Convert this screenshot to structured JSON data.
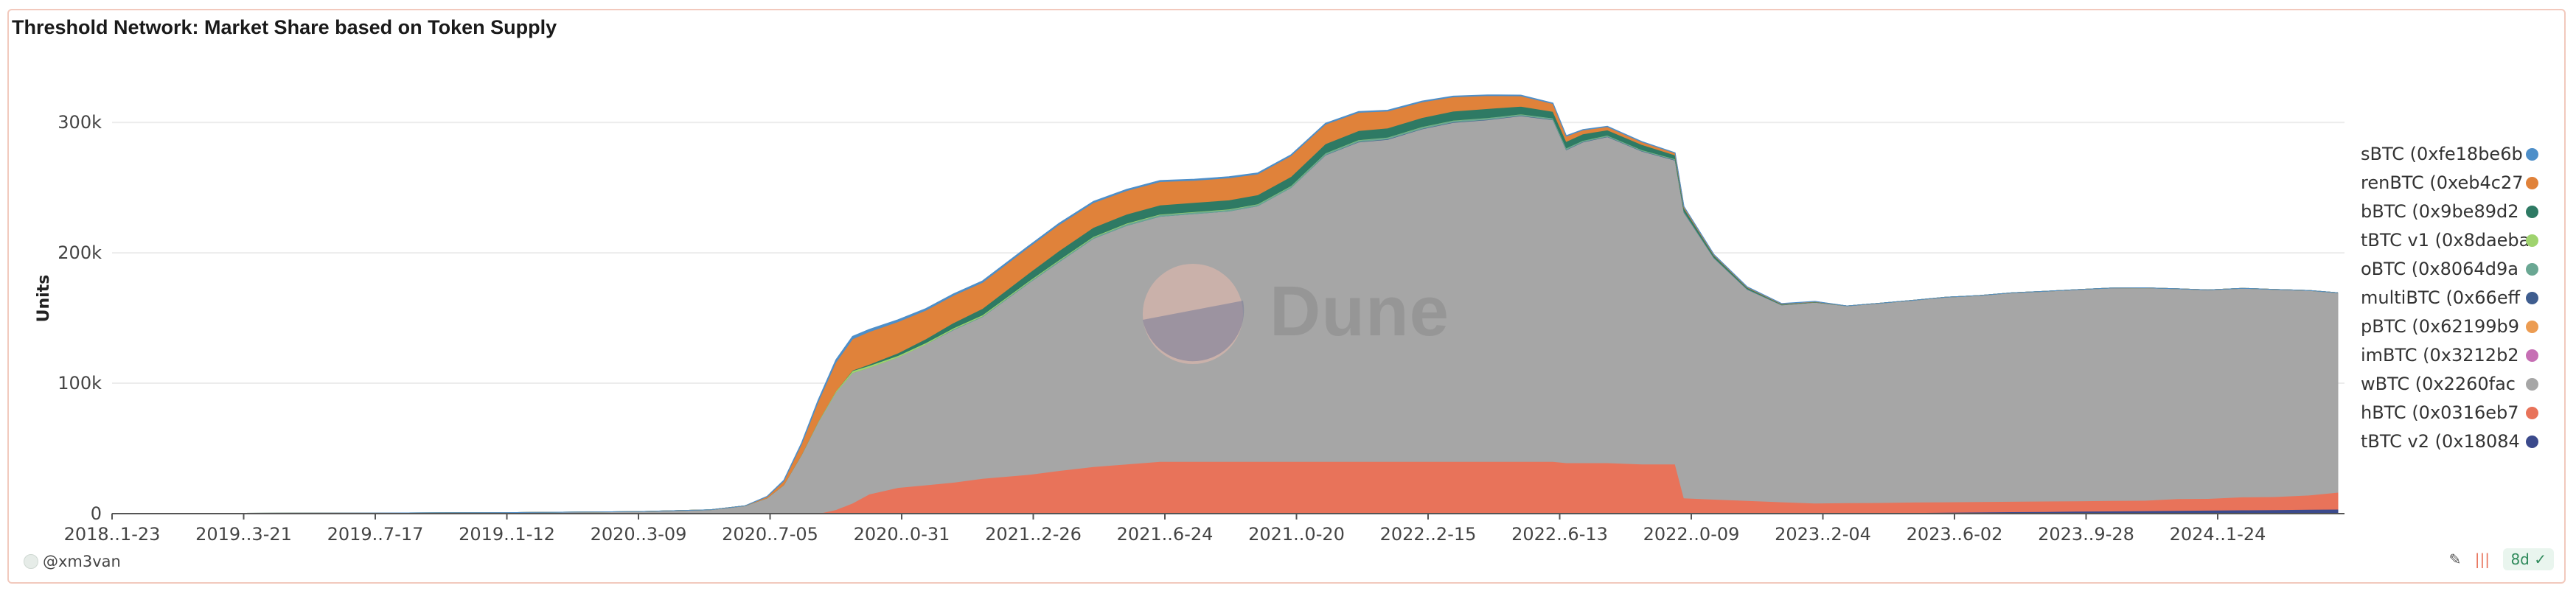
{
  "chart_data": {
    "type": "area",
    "title": "Threshold Network: Market Share based on Token Supply",
    "ylabel": "Units",
    "xlabel": "",
    "ylim": [
      0,
      360000
    ],
    "y_ticks": [
      0,
      100000,
      200000,
      300000
    ],
    "y_tick_labels": [
      "0",
      "100k",
      "200k",
      "300k"
    ],
    "x_tick_labels": [
      "2018..1-23",
      "2019..3-21",
      "2019..7-17",
      "2019..1-12",
      "2020..3-09",
      "2020..7-05",
      "2020..0-31",
      "2021..2-26",
      "2021..6-24",
      "2021..0-20",
      "2022..2-15",
      "2022..6-13",
      "2022..0-09",
      "2023..2-04",
      "2023..6-02",
      "2023..9-28",
      "2024..1-24"
    ],
    "grid": true,
    "legend_position": "right",
    "stacked": true,
    "x": [
      "2018-11-23",
      "2019-03-21",
      "2019-07-17",
      "2019-11-12",
      "2020-03-09",
      "2020-05-15",
      "2020-06-15",
      "2020-07-05",
      "2020-07-20",
      "2020-08-05",
      "2020-08-20",
      "2020-09-05",
      "2020-09-20",
      "2020-10-05",
      "2020-10-31",
      "2020-11-25",
      "2020-12-20",
      "2021-01-15",
      "2021-02-26",
      "2021-03-25",
      "2021-04-25",
      "2021-05-25",
      "2021-06-24",
      "2021-07-25",
      "2021-08-25",
      "2021-09-20",
      "2021-10-20",
      "2021-11-20",
      "2021-12-20",
      "2022-01-15",
      "2022-02-15",
      "2022-03-15",
      "2022-04-15",
      "2022-05-15",
      "2022-06-13",
      "2022-06-25",
      "2022-07-10",
      "2022-08-01",
      "2022-09-01",
      "2022-10-01",
      "2022-10-09",
      "2022-11-05",
      "2022-12-05",
      "2023-01-05",
      "2023-02-04",
      "2023-03-05",
      "2023-04-05",
      "2023-05-05",
      "2023-06-02",
      "2023-07-01",
      "2023-08-01",
      "2023-09-01",
      "2023-09-28",
      "2023-10-28",
      "2023-11-28",
      "2023-12-28",
      "2024-01-24",
      "2024-02-24",
      "2024-03-24",
      "2024-04-24",
      "2024-05-20"
    ],
    "series": [
      {
        "name": "sBTC (0xfe18be6b",
        "color": "#4e8fc9",
        "values": [
          0,
          0,
          0,
          0,
          0,
          0,
          0,
          300,
          600,
          1000,
          1500,
          2000,
          2000,
          1800,
          1500,
          1300,
          1200,
          1200,
          1100,
          1100,
          1000,
          1000,
          900,
          900,
          900,
          800,
          800,
          800,
          700,
          700,
          700,
          600,
          600,
          600,
          500,
          500,
          400,
          400,
          400,
          300,
          300,
          200,
          200,
          200,
          100,
          0,
          0,
          0,
          0,
          0,
          0,
          0,
          0,
          0,
          0,
          0,
          0,
          0,
          0,
          0,
          0
        ]
      },
      {
        "name": "renBTC (0xeb4c27",
        "color": "#e0823a",
        "values": [
          0,
          0,
          0,
          0,
          0,
          0,
          0,
          1000,
          3000,
          8000,
          15000,
          22000,
          24000,
          25000,
          24000,
          22000,
          21000,
          20000,
          20000,
          20000,
          19000,
          18000,
          18000,
          17000,
          17000,
          16000,
          16000,
          15000,
          14000,
          13000,
          12000,
          11000,
          10000,
          8000,
          6000,
          4000,
          3000,
          2500,
          2000,
          1500,
          1000,
          600,
          400,
          300,
          200,
          0,
          0,
          0,
          0,
          0,
          0,
          0,
          0,
          0,
          0,
          0,
          0,
          0,
          0,
          0,
          0
        ]
      },
      {
        "name": "bBTC (0x9be89d2",
        "color": "#2e7a64",
        "values": [
          0,
          0,
          0,
          0,
          0,
          0,
          0,
          0,
          0,
          0,
          0,
          0,
          500,
          1000,
          2000,
          3000,
          4000,
          5000,
          6000,
          7000,
          7000,
          7000,
          7000,
          7000,
          7000,
          7000,
          7000,
          7000,
          7000,
          7000,
          7000,
          7000,
          7000,
          6000,
          5000,
          5000,
          5000,
          4000,
          4000,
          3000,
          2500,
          1500,
          1000,
          500,
          300,
          0,
          0,
          0,
          0,
          0,
          0,
          0,
          0,
          0,
          0,
          0,
          0,
          0,
          0,
          0,
          0
        ]
      },
      {
        "name": "tBTC v1 (0x8daeba",
        "color": "#9fd36e",
        "values": [
          0,
          0,
          0,
          0,
          0,
          0,
          0,
          0,
          0,
          200,
          600,
          1000,
          1500,
          1500,
          1200,
          1000,
          900,
          800,
          700,
          600,
          500,
          500,
          400,
          400,
          300,
          300,
          300,
          200,
          200,
          200,
          200,
          100,
          100,
          100,
          100,
          100,
          100,
          100,
          100,
          100,
          0,
          0,
          0,
          0,
          0,
          0,
          0,
          0,
          0,
          0,
          0,
          0,
          0,
          0,
          0,
          0,
          0,
          0,
          0,
          0,
          0
        ]
      },
      {
        "name": "oBTC (0x8064d9a",
        "color": "#6aa793",
        "values": [
          0,
          0,
          0,
          0,
          0,
          0,
          0,
          0,
          0,
          0,
          0,
          0,
          0,
          0,
          0,
          0,
          500,
          500,
          800,
          1000,
          1000,
          1200,
          1200,
          1200,
          1200,
          1200,
          1200,
          1200,
          1200,
          1200,
          1200,
          1200,
          1200,
          1000,
          1000,
          1000,
          800,
          800,
          600,
          600,
          500,
          300,
          200,
          100,
          0,
          0,
          0,
          0,
          0,
          0,
          0,
          0,
          0,
          0,
          0,
          0,
          0,
          0,
          0,
          0,
          0
        ]
      },
      {
        "name": "multiBTC (0x66eff",
        "color": "#3f5d8f",
        "values": [
          0,
          0,
          0,
          0,
          0,
          0,
          0,
          0,
          0,
          0,
          0,
          0,
          0,
          0,
          0,
          0,
          0,
          0,
          0,
          0,
          0,
          0,
          0,
          0,
          0,
          0,
          0,
          200,
          300,
          300,
          300,
          300,
          300,
          300,
          300,
          300,
          300,
          300,
          300,
          300,
          300,
          200,
          200,
          100,
          100,
          0,
          0,
          0,
          0,
          0,
          0,
          0,
          0,
          0,
          0,
          0,
          0,
          0,
          0,
          0,
          0
        ]
      },
      {
        "name": "pBTC (0x62199b9",
        "color": "#ec9c52",
        "values": [
          0,
          0,
          0,
          0,
          0,
          0,
          0,
          0,
          0,
          0,
          0,
          0,
          0,
          0,
          0,
          0,
          0,
          0,
          0,
          0,
          0,
          0,
          0,
          0,
          0,
          0,
          0,
          0,
          0,
          0,
          0,
          0,
          0,
          0,
          0,
          0,
          0,
          0,
          0,
          0,
          0,
          0,
          0,
          0,
          0,
          0,
          0,
          0,
          0,
          0,
          0,
          0,
          0,
          0,
          0,
          0,
          0,
          0,
          0,
          0,
          0
        ]
      },
      {
        "name": "imBTC (0x3212b2",
        "color": "#c66fb4",
        "values": [
          0,
          0,
          0,
          0,
          0,
          0,
          0,
          0,
          0,
          0,
          0,
          0,
          0,
          0,
          0,
          0,
          0,
          0,
          0,
          0,
          0,
          0,
          0,
          0,
          0,
          0,
          0,
          0,
          0,
          0,
          0,
          0,
          0,
          0,
          0,
          0,
          0,
          0,
          0,
          0,
          0,
          0,
          0,
          0,
          0,
          0,
          0,
          0,
          0,
          0,
          0,
          0,
          0,
          0,
          0,
          0,
          0,
          0,
          0,
          0,
          0
        ]
      },
      {
        "name": "wBTC (0x2260fac",
        "color": "#a6a6a6",
        "values": [
          200,
          300,
          500,
          800,
          1500,
          3000,
          6000,
          12000,
          22000,
          45000,
          70000,
          90000,
          100000,
          97000,
          100000,
          108000,
          117000,
          124000,
          147000,
          160000,
          175000,
          183000,
          188000,
          190000,
          192000,
          196000,
          210000,
          235000,
          245000,
          247000,
          255000,
          260000,
          262000,
          265000,
          262000,
          240000,
          246000,
          250000,
          240000,
          233000,
          219000,
          185000,
          162000,
          151000,
          154000,
          151000,
          153000,
          155000,
          157000,
          158000,
          160000,
          161000,
          162000,
          163000,
          163000,
          161000,
          160000,
          160000,
          159000,
          157000,
          153000
        ]
      },
      {
        "name": "hBTC (0x0316eb7",
        "color": "#e8735a",
        "values": [
          0,
          0,
          0,
          0,
          0,
          0,
          0,
          0,
          0,
          0,
          0,
          3000,
          8000,
          15000,
          20000,
          22000,
          24000,
          27000,
          30000,
          33000,
          36000,
          38000,
          40000,
          40000,
          40000,
          40000,
          40000,
          40000,
          40000,
          40000,
          40000,
          40000,
          40000,
          40000,
          40000,
          39000,
          39000,
          39000,
          38000,
          38000,
          12000,
          11000,
          10000,
          9000,
          8000,
          8000,
          8000,
          8000,
          8000,
          8000,
          8000,
          8000,
          8000,
          8000,
          8000,
          9000,
          9000,
          10000,
          10000,
          11000,
          13000
        ]
      },
      {
        "name": "tBTC v2 (0x18084",
        "color": "#3b4a8c",
        "values": [
          0,
          0,
          0,
          0,
          0,
          0,
          0,
          0,
          0,
          0,
          0,
          0,
          0,
          0,
          0,
          0,
          0,
          0,
          0,
          0,
          0,
          0,
          0,
          0,
          0,
          0,
          0,
          0,
          0,
          0,
          0,
          0,
          0,
          0,
          0,
          0,
          0,
          0,
          0,
          0,
          0,
          0,
          0,
          0,
          100,
          300,
          500,
          800,
          1000,
          1200,
          1400,
          1600,
          1800,
          2000,
          2200,
          2400,
          2600,
          2800,
          3000,
          3200,
          3400
        ]
      }
    ]
  },
  "watermark": "Dune",
  "footer": {
    "author": "@xm3van",
    "age": "8d"
  }
}
